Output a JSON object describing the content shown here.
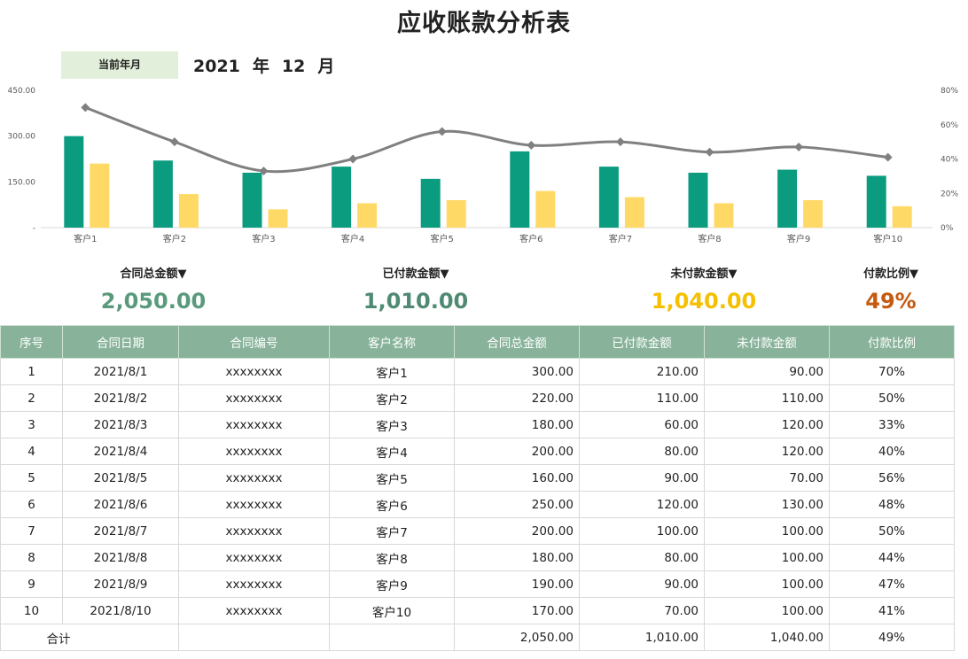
{
  "title": "应收账款分析表",
  "period": {
    "label": "当前年月",
    "year": "2021",
    "year_unit": "年",
    "month": "12",
    "month_unit": "月"
  },
  "colors": {
    "contract_bar": "#0b9c80",
    "paid_bar": "#ffd966",
    "ratio_line": "#808080",
    "header_bg": "#88b39a",
    "label_bg": "#e2efda",
    "kpi_total": "#5a9a7c",
    "kpi_paid": "#4f8a72",
    "kpi_unpaid": "#f5c000",
    "kpi_ratio": "#c55a11"
  },
  "chart_data": {
    "type": "bar",
    "categories": [
      "客户1",
      "客户2",
      "客户3",
      "客户4",
      "客户5",
      "客户6",
      "客户7",
      "客户8",
      "客户9",
      "客户10"
    ],
    "series": [
      {
        "values": [
          300,
          220,
          180,
          200,
          160,
          250,
          200,
          180,
          190,
          170
        ],
        "axis": "left"
      },
      {
        "values": [
          210,
          110,
          60,
          80,
          90,
          120,
          100,
          80,
          90,
          70
        ],
        "axis": "left"
      },
      {
        "type": "line",
        "values": [
          70,
          50,
          33,
          40,
          56,
          48,
          50,
          44,
          47,
          41
        ],
        "axis": "right"
      }
    ],
    "ylim": [
      0,
      450
    ],
    "yticks": [
      "-",
      "150.00",
      "300.00",
      "450.00"
    ],
    "y2lim": [
      0,
      80
    ],
    "y2ticks": [
      "0%",
      "20%",
      "40%",
      "60%",
      "80%"
    ],
    "grid": false,
    "legend": "none"
  },
  "kpis": [
    {
      "label": "合同总金额▼",
      "value": "2,050.00"
    },
    {
      "label": "已付款金额▼",
      "value": "1,010.00"
    },
    {
      "label": "未付款金额▼",
      "value": "1,040.00"
    },
    {
      "label": "付款比例▼",
      "value": "49%"
    }
  ],
  "table": {
    "headers": [
      "序号",
      "合同日期",
      "合同编号",
      "客户名称",
      "合同总金额",
      "已付款金额",
      "未付款金额",
      "付款比例"
    ],
    "rows": [
      [
        "1",
        "2021/8/1",
        "xxxxxxxx",
        "客户1",
        "300.00",
        "210.00",
        "90.00",
        "70%"
      ],
      [
        "2",
        "2021/8/2",
        "xxxxxxxx",
        "客户2",
        "220.00",
        "110.00",
        "110.00",
        "50%"
      ],
      [
        "3",
        "2021/8/3",
        "xxxxxxxx",
        "客户3",
        "180.00",
        "60.00",
        "120.00",
        "33%"
      ],
      [
        "4",
        "2021/8/4",
        "xxxxxxxx",
        "客户4",
        "200.00",
        "80.00",
        "120.00",
        "40%"
      ],
      [
        "5",
        "2021/8/5",
        "xxxxxxxx",
        "客户5",
        "160.00",
        "90.00",
        "70.00",
        "56%"
      ],
      [
        "6",
        "2021/8/6",
        "xxxxxxxx",
        "客户6",
        "250.00",
        "120.00",
        "130.00",
        "48%"
      ],
      [
        "7",
        "2021/8/7",
        "xxxxxxxx",
        "客户7",
        "200.00",
        "100.00",
        "100.00",
        "50%"
      ],
      [
        "8",
        "2021/8/8",
        "xxxxxxxx",
        "客户8",
        "180.00",
        "80.00",
        "100.00",
        "44%"
      ],
      [
        "9",
        "2021/8/9",
        "xxxxxxxx",
        "客户9",
        "190.00",
        "90.00",
        "100.00",
        "47%"
      ],
      [
        "10",
        "2021/8/10",
        "xxxxxxxx",
        "客户10",
        "170.00",
        "70.00",
        "100.00",
        "41%"
      ]
    ],
    "total": {
      "label": "合计",
      "contract": "2,050.00",
      "paid": "1,010.00",
      "unpaid": "1,040.00",
      "ratio": "49%"
    }
  }
}
